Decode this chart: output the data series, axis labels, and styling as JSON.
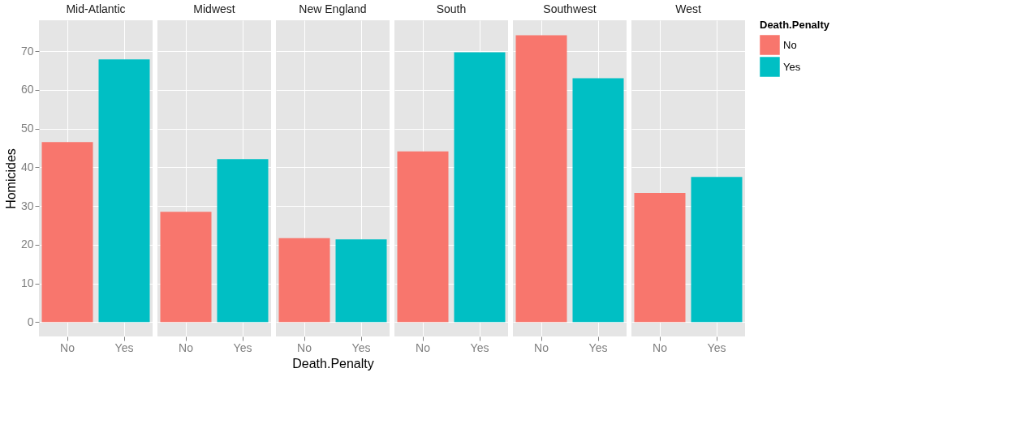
{
  "chart_data": [
    {
      "type": "bar",
      "title": "Mid-Atlantic",
      "ylabel": "Homicides",
      "categories": [
        "No",
        "Yes"
      ],
      "ylim": [
        -3.7,
        78
      ],
      "yticks": [
        0,
        10,
        20,
        30,
        40,
        50,
        60,
        70
      ],
      "grid": true,
      "series": [
        {
          "color": "#f8766d",
          "values": [
            46.5,
            null
          ]
        },
        {
          "color": "#00bfc4",
          "values": [
            null,
            67.9
          ]
        }
      ]
    },
    {
      "type": "bar",
      "title": "Midwest",
      "categories": [
        "No",
        "Yes"
      ],
      "ylim": [
        -3.7,
        78
      ],
      "yticks": [
        0,
        10,
        20,
        30,
        40,
        50,
        60,
        70
      ],
      "grid": true,
      "tick_labels": "x",
      "series": [
        {
          "color": "#f8766d",
          "values": [
            28.5,
            null
          ]
        },
        {
          "color": "#00bfc4",
          "values": [
            null,
            42.1
          ]
        }
      ]
    },
    {
      "type": "bar",
      "title": "New England",
      "xlabel": "Death.Penalty",
      "categories": [
        "No",
        "Yes"
      ],
      "ylim": [
        -3.7,
        78
      ],
      "yticks": [
        0,
        10,
        20,
        30,
        40,
        50,
        60,
        70
      ],
      "grid": true,
      "tick_labels": "x",
      "series": [
        {
          "color": "#f8766d",
          "values": [
            21.7,
            null
          ]
        },
        {
          "color": "#00bfc4",
          "values": [
            null,
            21.4
          ]
        }
      ]
    },
    {
      "type": "bar",
      "title": "South",
      "categories": [
        "No",
        "Yes"
      ],
      "ylim": [
        -3.7,
        78
      ],
      "yticks": [
        0,
        10,
        20,
        30,
        40,
        50,
        60,
        70
      ],
      "grid": true,
      "tick_labels": "x",
      "series": [
        {
          "color": "#f8766d",
          "values": [
            44.1,
            null
          ]
        },
        {
          "color": "#00bfc4",
          "values": [
            null,
            69.7
          ]
        }
      ]
    },
    {
      "type": "bar",
      "title": "Southwest",
      "categories": [
        "No",
        "Yes"
      ],
      "ylim": [
        -3.7,
        78
      ],
      "yticks": [
        0,
        10,
        20,
        30,
        40,
        50,
        60,
        70
      ],
      "grid": true,
      "tick_labels": "x",
      "series": [
        {
          "color": "#f8766d",
          "values": [
            74.1,
            null
          ]
        },
        {
          "color": "#00bfc4",
          "values": [
            null,
            63.0
          ]
        }
      ]
    },
    {
      "type": "bar",
      "title": "West",
      "categories": [
        "No",
        "Yes"
      ],
      "ylim": [
        -3.7,
        78
      ],
      "yticks": [
        0,
        10,
        20,
        30,
        40,
        50,
        60,
        70
      ],
      "grid": true,
      "tick_labels": "x",
      "legend": "right",
      "legend_title": "Death.Penalty",
      "series": [
        {
          "name": "No",
          "color": "#f8766d",
          "values": [
            33.4,
            null
          ]
        },
        {
          "name": "Yes",
          "color": "#00bfc4",
          "values": [
            null,
            37.5
          ]
        }
      ]
    }
  ]
}
